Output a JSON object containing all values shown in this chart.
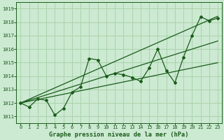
{
  "title": "Graphe pression niveau de la mer (hPa)",
  "background_color": "#cce9d2",
  "grid_color": "#aad4aa",
  "line_color": "#1a5c1a",
  "x_values": [
    0,
    1,
    2,
    3,
    4,
    5,
    6,
    7,
    8,
    9,
    10,
    11,
    12,
    13,
    14,
    15,
    16,
    17,
    18,
    19,
    20,
    21,
    22,
    23
  ],
  "y_main": [
    1012.0,
    1011.7,
    1012.3,
    1012.2,
    1011.1,
    1011.6,
    1012.8,
    1013.2,
    1015.3,
    1015.2,
    1014.0,
    1014.2,
    1014.1,
    1013.9,
    1013.6,
    1014.6,
    1016.0,
    1014.4,
    1013.5,
    1015.4,
    1017.0,
    1018.4,
    1018.1,
    1018.3
  ],
  "y_trend1": [
    1012.0,
    1012.13,
    1012.26,
    1012.39,
    1012.52,
    1012.65,
    1012.78,
    1012.91,
    1013.04,
    1013.17,
    1013.3,
    1013.43,
    1013.56,
    1013.69,
    1013.82,
    1013.95,
    1014.08,
    1014.21,
    1014.34,
    1014.47,
    1014.6,
    1014.73,
    1014.86,
    1014.99
  ],
  "y_trend2": [
    1012.0,
    1012.2,
    1012.4,
    1012.6,
    1012.8,
    1013.0,
    1013.2,
    1013.4,
    1013.6,
    1013.8,
    1014.0,
    1014.2,
    1014.4,
    1014.6,
    1014.8,
    1015.0,
    1015.2,
    1015.4,
    1015.6,
    1015.8,
    1016.0,
    1016.2,
    1016.4,
    1016.6
  ],
  "y_trend3": [
    1012.0,
    1012.28,
    1012.56,
    1012.84,
    1013.12,
    1013.4,
    1013.68,
    1013.96,
    1014.24,
    1014.52,
    1014.8,
    1015.08,
    1015.36,
    1015.64,
    1015.92,
    1016.2,
    1016.48,
    1016.76,
    1017.04,
    1017.32,
    1017.6,
    1017.88,
    1018.16,
    1018.44
  ],
  "ylim": [
    1010.5,
    1019.5
  ],
  "yticks": [
    1011,
    1012,
    1013,
    1014,
    1015,
    1016,
    1017,
    1018,
    1019
  ],
  "xlim": [
    -0.5,
    23.5
  ],
  "xticks": [
    0,
    1,
    2,
    3,
    4,
    5,
    6,
    7,
    8,
    9,
    10,
    11,
    12,
    13,
    14,
    15,
    16,
    17,
    18,
    19,
    20,
    21,
    22,
    23
  ]
}
